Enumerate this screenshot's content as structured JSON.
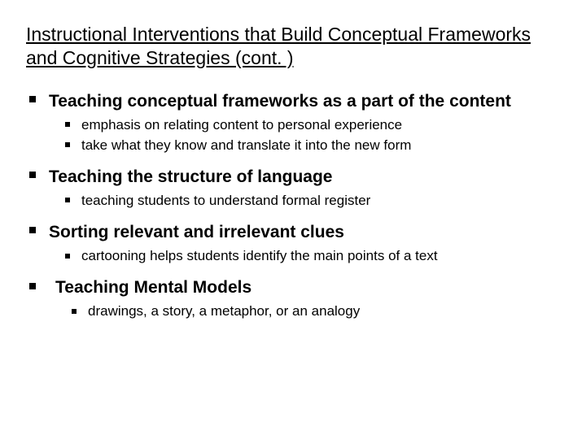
{
  "title": "Instructional Interventions that Build Conceptual Frameworks and Cognitive Strategies (cont. )",
  "items": [
    {
      "label": "Teaching conceptual frameworks as a part of the content",
      "sub": [
        "emphasis on relating content to personal experience",
        "take what they know and translate it into the new form"
      ]
    },
    {
      "label": "Teaching the structure of language",
      "sub": [
        "teaching students to understand formal register"
      ]
    },
    {
      "label": "Sorting relevant and irrelevant clues",
      "sub": [
        "cartooning helps students identify the main points of a text"
      ]
    },
    {
      "label": " Teaching Mental Models",
      "sub": [
        "drawings, a story, a metaphor, or an analogy"
      ]
    }
  ]
}
